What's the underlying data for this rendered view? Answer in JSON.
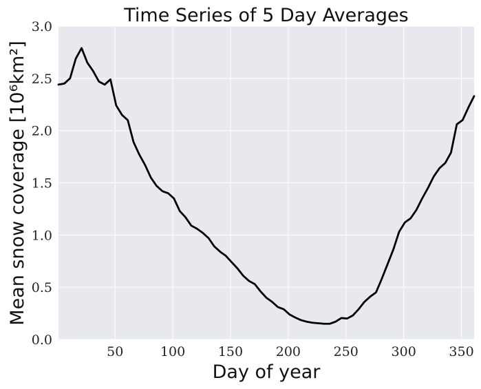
{
  "chart_data": {
    "type": "line",
    "title": "Time Series of 5 Day Averages",
    "xlabel": "Day of year",
    "ylabel": "Mean snow coverage [10⁶km²]",
    "xlim": [
      1,
      361
    ],
    "ylim": [
      0.0,
      3.0
    ],
    "x_ticks": [
      50,
      100,
      150,
      200,
      250,
      300,
      350
    ],
    "y_ticks": [
      "0.0",
      "0.5",
      "1.0",
      "1.5",
      "2.0",
      "2.5",
      "3.0"
    ],
    "grid": true,
    "colors": {
      "background": "#e8e8ef",
      "grid": "#ffffff",
      "line": "#000000"
    },
    "series": [
      {
        "x": [
          1,
          6,
          11,
          16,
          21,
          26,
          31,
          36,
          41,
          46,
          51,
          56,
          61,
          66,
          71,
          76,
          81,
          86,
          91,
          96,
          101,
          106,
          111,
          116,
          121,
          126,
          131,
          136,
          141,
          146,
          151,
          156,
          161,
          166,
          171,
          176,
          181,
          186,
          191,
          196,
          201,
          206,
          211,
          216,
          221,
          226,
          231,
          236,
          241,
          246,
          251,
          256,
          261,
          266,
          271,
          276,
          281,
          286,
          291,
          296,
          301,
          306,
          311,
          316,
          321,
          326,
          331,
          336,
          341,
          346,
          351,
          356,
          361
        ],
        "y": [
          2.44,
          2.45,
          2.5,
          2.69,
          2.79,
          2.65,
          2.57,
          2.47,
          2.44,
          2.49,
          2.24,
          2.15,
          2.1,
          1.89,
          1.77,
          1.67,
          1.55,
          1.47,
          1.42,
          1.4,
          1.35,
          1.23,
          1.17,
          1.09,
          1.06,
          1.02,
          0.97,
          0.89,
          0.84,
          0.8,
          0.74,
          0.68,
          0.61,
          0.56,
          0.53,
          0.46,
          0.4,
          0.36,
          0.31,
          0.29,
          0.24,
          0.21,
          0.185,
          0.17,
          0.16,
          0.155,
          0.15,
          0.15,
          0.17,
          0.205,
          0.2,
          0.23,
          0.29,
          0.36,
          0.41,
          0.45,
          0.58,
          0.72,
          0.86,
          1.03,
          1.12,
          1.16,
          1.24,
          1.35,
          1.45,
          1.56,
          1.64,
          1.69,
          1.79,
          2.06,
          2.1,
          2.22,
          2.33
        ]
      }
    ]
  }
}
